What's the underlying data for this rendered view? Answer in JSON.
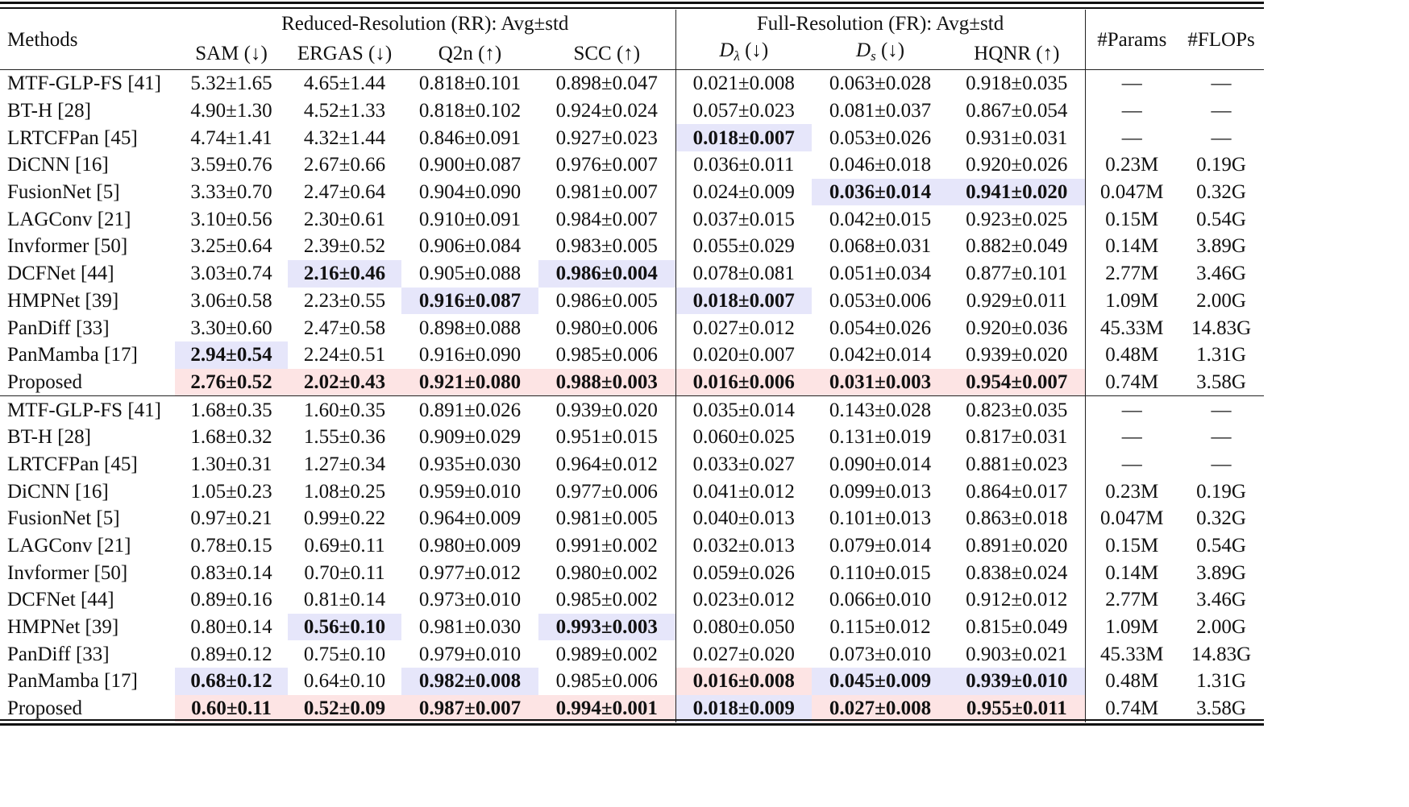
{
  "table": {
    "header": {
      "methods": "Methods",
      "rr_group": "Reduced-Resolution (RR): Avg±std",
      "fr_group": "Full-Resolution (FR): Avg±std",
      "params": "#Params",
      "flops": "#FLOPs",
      "cols": {
        "sam": "SAM (↓)",
        "ergas": "ERGAS (↓)",
        "q2n": "Q2n (↑)",
        "scc": "SCC (↑)",
        "d_lambda_main": "D",
        "d_lambda_sub": "λ",
        "d_lambda_arrow": " (↓)",
        "d_s_main": "D",
        "d_s_sub": "s",
        "d_s_arrow": " (↓)",
        "hqnr": "HQNR (↑)"
      }
    },
    "highlight_colors": {
      "best_blue": "#e6e6fa",
      "best_pink": "#fde4e4"
    },
    "block1": [
      {
        "method": "MTF-GLP-FS [41]",
        "sam": "5.32±1.65",
        "ergas": "4.65±1.44",
        "q2n": "0.818±0.101",
        "scc": "0.898±0.047",
        "dl": "0.021±0.008",
        "ds": "0.063±0.028",
        "hqnr": "0.918±0.035",
        "params": "—",
        "flops": "—"
      },
      {
        "method": "BT-H [28]",
        "sam": "4.90±1.30",
        "ergas": "4.52±1.33",
        "q2n": "0.818±0.102",
        "scc": "0.924±0.024",
        "dl": "0.057±0.023",
        "ds": "0.081±0.037",
        "hqnr": "0.867±0.054",
        "params": "—",
        "flops": "—"
      },
      {
        "method": "LRTCFPan [45]",
        "sam": "4.74±1.41",
        "ergas": "4.32±1.44",
        "q2n": "0.846±0.091",
        "scc": "0.927±0.023",
        "dl": "0.018±0.007",
        "ds": "0.053±0.026",
        "hqnr": "0.931±0.031",
        "params": "—",
        "flops": "—"
      },
      {
        "method": "DiCNN [16]",
        "sam": "3.59±0.76",
        "ergas": "2.67±0.66",
        "q2n": "0.900±0.087",
        "scc": "0.976±0.007",
        "dl": "0.036±0.011",
        "ds": "0.046±0.018",
        "hqnr": "0.920±0.026",
        "params": "0.23M",
        "flops": "0.19G"
      },
      {
        "method": "FusionNet [5]",
        "sam": "3.33±0.70",
        "ergas": "2.47±0.64",
        "q2n": "0.904±0.090",
        "scc": "0.981±0.007",
        "dl": "0.024±0.009",
        "ds": "0.036±0.014",
        "hqnr": "0.941±0.020",
        "params": "0.047M",
        "flops": "0.32G"
      },
      {
        "method": "LAGConv [21]",
        "sam": "3.10±0.56",
        "ergas": "2.30±0.61",
        "q2n": "0.910±0.091",
        "scc": "0.984±0.007",
        "dl": "0.037±0.015",
        "ds": "0.042±0.015",
        "hqnr": "0.923±0.025",
        "params": "0.15M",
        "flops": "0.54G"
      },
      {
        "method": "Invformer [50]",
        "sam": "3.25±0.64",
        "ergas": "2.39±0.52",
        "q2n": "0.906±0.084",
        "scc": "0.983±0.005",
        "dl": "0.055±0.029",
        "ds": "0.068±0.031",
        "hqnr": "0.882±0.049",
        "params": "0.14M",
        "flops": "3.89G"
      },
      {
        "method": "DCFNet [44]",
        "sam": "3.03±0.74",
        "ergas": "2.16±0.46",
        "q2n": "0.905±0.088",
        "scc": "0.986±0.004",
        "dl": "0.078±0.081",
        "ds": "0.051±0.034",
        "hqnr": "0.877±0.101",
        "params": "2.77M",
        "flops": "3.46G"
      },
      {
        "method": "HMPNet [39]",
        "sam": "3.06±0.58",
        "ergas": "2.23±0.55",
        "q2n": "0.916±0.087",
        "scc": "0.986±0.005",
        "dl": "0.018±0.007",
        "ds": "0.053±0.006",
        "hqnr": "0.929±0.011",
        "params": "1.09M",
        "flops": "2.00G"
      },
      {
        "method": "PanDiff [33]",
        "sam": "3.30±0.60",
        "ergas": "2.47±0.58",
        "q2n": "0.898±0.088",
        "scc": "0.980±0.006",
        "dl": "0.027±0.012",
        "ds": "0.054±0.026",
        "hqnr": "0.920±0.036",
        "params": "45.33M",
        "flops": "14.83G"
      },
      {
        "method": "PanMamba [17]",
        "sam": "2.94±0.54",
        "ergas": "2.24±0.51",
        "q2n": "0.916±0.090",
        "scc": "0.985±0.006",
        "dl": "0.020±0.007",
        "ds": "0.042±0.014",
        "hqnr": "0.939±0.020",
        "params": "0.48M",
        "flops": "1.31G"
      },
      {
        "method": "Proposed",
        "sam": "2.76±0.52",
        "ergas": "2.02±0.43",
        "q2n": "0.921±0.080",
        "scc": "0.988±0.003",
        "dl": "0.016±0.006",
        "ds": "0.031±0.003",
        "hqnr": "0.954±0.007",
        "params": "0.74M",
        "flops": "3.58G"
      }
    ],
    "block2": [
      {
        "method": "MTF-GLP-FS [41]",
        "sam": "1.68±0.35",
        "ergas": "1.60±0.35",
        "q2n": "0.891±0.026",
        "scc": "0.939±0.020",
        "dl": "0.035±0.014",
        "ds": "0.143±0.028",
        "hqnr": "0.823±0.035",
        "params": "—",
        "flops": "—"
      },
      {
        "method": "BT-H [28]",
        "sam": "1.68±0.32",
        "ergas": "1.55±0.36",
        "q2n": "0.909±0.029",
        "scc": "0.951±0.015",
        "dl": "0.060±0.025",
        "ds": "0.131±0.019",
        "hqnr": "0.817±0.031",
        "params": "—",
        "flops": "—"
      },
      {
        "method": "LRTCFPan [45]",
        "sam": "1.30±0.31",
        "ergas": "1.27±0.34",
        "q2n": "0.935±0.030",
        "scc": "0.964±0.012",
        "dl": "0.033±0.027",
        "ds": "0.090±0.014",
        "hqnr": "0.881±0.023",
        "params": "—",
        "flops": "—"
      },
      {
        "method": "DiCNN [16]",
        "sam": "1.05±0.23",
        "ergas": "1.08±0.25",
        "q2n": "0.959±0.010",
        "scc": "0.977±0.006",
        "dl": "0.041±0.012",
        "ds": "0.099±0.013",
        "hqnr": "0.864±0.017",
        "params": "0.23M",
        "flops": "0.19G"
      },
      {
        "method": "FusionNet [5]",
        "sam": "0.97±0.21",
        "ergas": "0.99±0.22",
        "q2n": "0.964±0.009",
        "scc": "0.981±0.005",
        "dl": "0.040±0.013",
        "ds": "0.101±0.013",
        "hqnr": "0.863±0.018",
        "params": "0.047M",
        "flops": "0.32G"
      },
      {
        "method": "LAGConv [21]",
        "sam": "0.78±0.15",
        "ergas": "0.69±0.11",
        "q2n": "0.980±0.009",
        "scc": "0.991±0.002",
        "dl": "0.032±0.013",
        "ds": "0.079±0.014",
        "hqnr": "0.891±0.020",
        "params": "0.15M",
        "flops": "0.54G"
      },
      {
        "method": "Invformer [50]",
        "sam": "0.83±0.14",
        "ergas": "0.70±0.11",
        "q2n": "0.977±0.012",
        "scc": "0.980±0.002",
        "dl": "0.059±0.026",
        "ds": "0.110±0.015",
        "hqnr": "0.838±0.024",
        "params": "0.14M",
        "flops": "3.89G"
      },
      {
        "method": "DCFNet [44]",
        "sam": "0.89±0.16",
        "ergas": "0.81±0.14",
        "q2n": "0.973±0.010",
        "scc": "0.985±0.002",
        "dl": "0.023±0.012",
        "ds": "0.066±0.010",
        "hqnr": "0.912±0.012",
        "params": "2.77M",
        "flops": "3.46G"
      },
      {
        "method": "HMPNet [39]",
        "sam": "0.80±0.14",
        "ergas": "0.56±0.10",
        "q2n": "0.981±0.030",
        "scc": "0.993±0.003",
        "dl": "0.080±0.050",
        "ds": "0.115±0.012",
        "hqnr": "0.815±0.049",
        "params": "1.09M",
        "flops": "2.00G"
      },
      {
        "method": "PanDiff [33]",
        "sam": "0.89±0.12",
        "ergas": "0.75±0.10",
        "q2n": "0.979±0.010",
        "scc": "0.989±0.002",
        "dl": "0.027±0.020",
        "ds": "0.073±0.010",
        "hqnr": "0.903±0.021",
        "params": "45.33M",
        "flops": "14.83G"
      },
      {
        "method": "PanMamba [17]",
        "sam": "0.68±0.12",
        "ergas": "0.64±0.10",
        "q2n": "0.982±0.008",
        "scc": "0.985±0.006",
        "dl": "0.016±0.008",
        "ds": "0.045±0.009",
        "hqnr": "0.939±0.010",
        "params": "0.48M",
        "flops": "1.31G"
      },
      {
        "method": "Proposed",
        "sam": "0.60±0.11",
        "ergas": "0.52±0.09",
        "q2n": "0.987±0.007",
        "scc": "0.994±0.001",
        "dl": "0.018±0.009",
        "ds": "0.027±0.008",
        "hqnr": "0.955±0.011",
        "params": "0.74M",
        "flops": "3.58G"
      }
    ]
  }
}
